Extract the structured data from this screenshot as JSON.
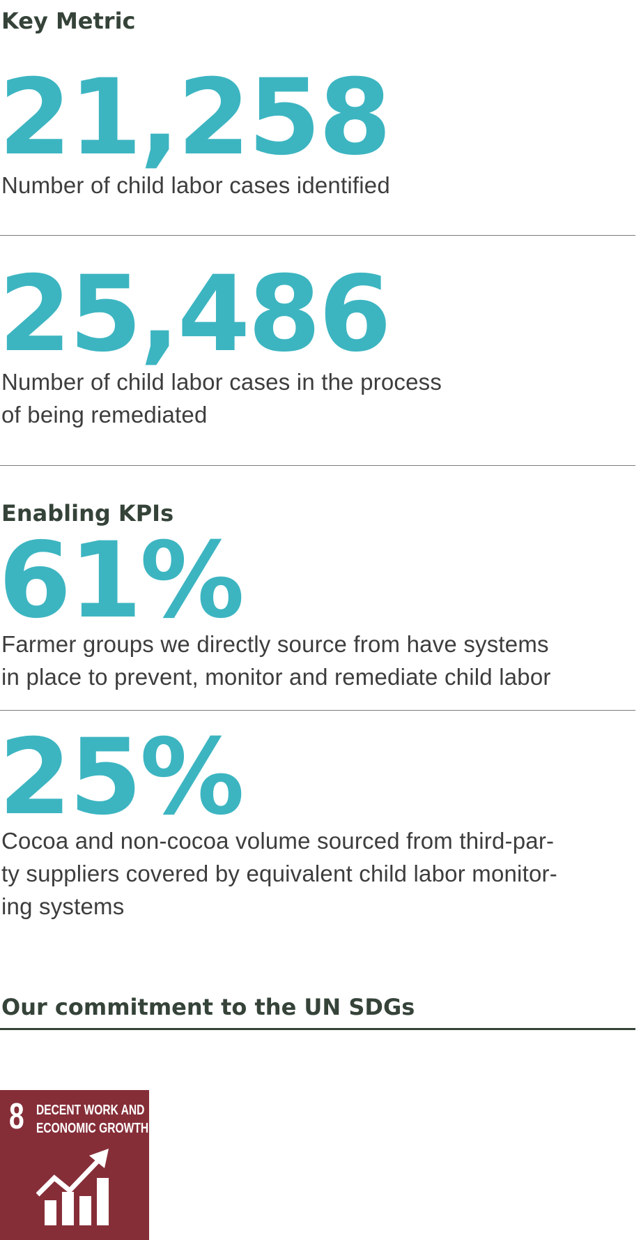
{
  "key_metric": {
    "heading": "Key Metric",
    "items": [
      {
        "value": "21,258",
        "lines": [
          "Number of child labor cases identified"
        ]
      },
      {
        "value": "25,486",
        "lines": [
          "Number of child labor cases in the process",
          "of being remediated"
        ]
      }
    ]
  },
  "enabling_kpis": {
    "heading": "Enabling KPIs",
    "items": [
      {
        "value": "61%",
        "lines": [
          "Farmer groups we directly source from have systems",
          "in place to prevent, monitor and remediate child labor"
        ]
      },
      {
        "value": "25%",
        "lines": [
          "Cocoa and non-cocoa volume sourced from third-par-",
          "ty suppliers covered by equivalent child labor monitor-",
          "ing systems"
        ]
      }
    ]
  },
  "sdg": {
    "heading": "Our commitment to the UN SDGs",
    "tile": {
      "number": "8",
      "title_lines": [
        "DECENT WORK AND",
        "ECONOMIC GROWTH"
      ],
      "icon": "growth-chart-icon",
      "color": "#862e38"
    }
  },
  "colors": {
    "accent": "#3cb5c1",
    "heading": "#354339"
  }
}
